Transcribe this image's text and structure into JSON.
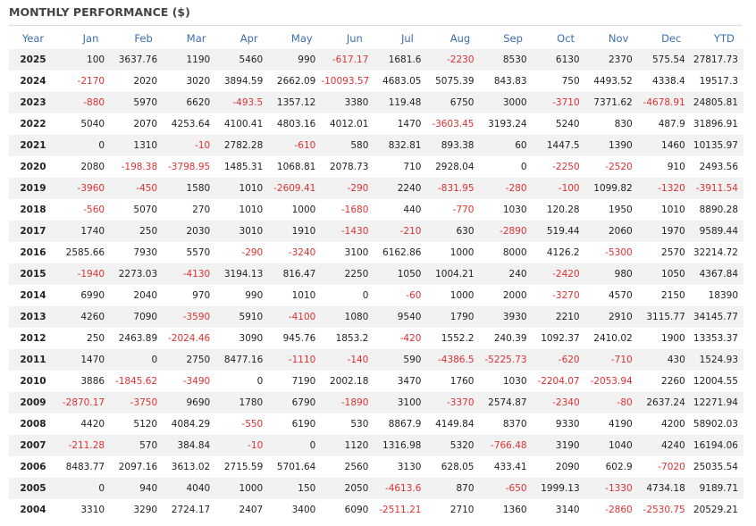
{
  "header": {
    "title": "MONTHLY PERFORMANCE ($)"
  },
  "table": {
    "columns": [
      "Year",
      "Jan",
      "Feb",
      "Mar",
      "Apr",
      "May",
      "Jun",
      "Jul",
      "Aug",
      "Sep",
      "Oct",
      "Nov",
      "Dec",
      "YTD"
    ],
    "rows": [
      [
        "2025",
        "100",
        "3637.76",
        "1190",
        "5460",
        "990",
        "-617.17",
        "1681.6",
        "-2230",
        "8530",
        "6130",
        "2370",
        "575.54",
        "27817.73"
      ],
      [
        "2024",
        "-2170",
        "2020",
        "3020",
        "3894.59",
        "2662.09",
        "-10093.57",
        "4683.05",
        "5075.39",
        "843.83",
        "750",
        "4493.52",
        "4338.4",
        "19517.3"
      ],
      [
        "2023",
        "-880",
        "5970",
        "6620",
        "-493.5",
        "1357.12",
        "3380",
        "119.48",
        "6750",
        "3000",
        "-3710",
        "7371.62",
        "-4678.91",
        "24805.81"
      ],
      [
        "2022",
        "5040",
        "2070",
        "4253.64",
        "4100.41",
        "4803.16",
        "4012.01",
        "1470",
        "-3603.45",
        "3193.24",
        "5240",
        "830",
        "487.9",
        "31896.91"
      ],
      [
        "2021",
        "0",
        "1310",
        "-10",
        "2782.28",
        "-610",
        "580",
        "832.81",
        "893.38",
        "60",
        "1447.5",
        "1390",
        "1460",
        "10135.97"
      ],
      [
        "2020",
        "2080",
        "-198.38",
        "-3798.95",
        "1485.31",
        "1068.81",
        "2078.73",
        "710",
        "2928.04",
        "0",
        "-2250",
        "-2520",
        "910",
        "2493.56"
      ],
      [
        "2019",
        "-3960",
        "-450",
        "1580",
        "1010",
        "-2609.41",
        "-290",
        "2240",
        "-831.95",
        "-280",
        "-100",
        "1099.82",
        "-1320",
        "-3911.54"
      ],
      [
        "2018",
        "-560",
        "5070",
        "270",
        "1010",
        "1000",
        "-1680",
        "440",
        "-770",
        "1030",
        "120.28",
        "1950",
        "1010",
        "8890.28"
      ],
      [
        "2017",
        "1740",
        "250",
        "2030",
        "3010",
        "1910",
        "-1430",
        "-210",
        "630",
        "-2890",
        "519.44",
        "2060",
        "1970",
        "9589.44"
      ],
      [
        "2016",
        "2585.66",
        "7930",
        "5570",
        "-290",
        "-3240",
        "3100",
        "6162.86",
        "1000",
        "8000",
        "4126.2",
        "-5300",
        "2570",
        "32214.72"
      ],
      [
        "2015",
        "-1940",
        "2273.03",
        "-4130",
        "3194.13",
        "816.47",
        "2250",
        "1050",
        "1004.21",
        "240",
        "-2420",
        "980",
        "1050",
        "4367.84"
      ],
      [
        "2014",
        "6990",
        "2040",
        "970",
        "990",
        "1010",
        "0",
        "-60",
        "1000",
        "2000",
        "-3270",
        "4570",
        "2150",
        "18390"
      ],
      [
        "2013",
        "4260",
        "7090",
        "-3590",
        "5910",
        "-4100",
        "1080",
        "9540",
        "1790",
        "3930",
        "2210",
        "2910",
        "3115.77",
        "34145.77"
      ],
      [
        "2012",
        "250",
        "2463.89",
        "-2024.46",
        "3090",
        "945.76",
        "1853.2",
        "-420",
        "1552.2",
        "240.39",
        "1092.37",
        "2410.02",
        "1900",
        "13353.37"
      ],
      [
        "2011",
        "1470",
        "0",
        "2750",
        "8477.16",
        "-1110",
        "-140",
        "590",
        "-4386.5",
        "-5225.73",
        "-620",
        "-710",
        "430",
        "1524.93"
      ],
      [
        "2010",
        "3886",
        "-1845.62",
        "-3490",
        "0",
        "7190",
        "2002.18",
        "3470",
        "1760",
        "1030",
        "-2204.07",
        "-2053.94",
        "2260",
        "12004.55"
      ],
      [
        "2009",
        "-2870.17",
        "-3750",
        "9690",
        "1780",
        "6790",
        "-1890",
        "3100",
        "-3370",
        "2574.87",
        "-2340",
        "-80",
        "2637.24",
        "12271.94"
      ],
      [
        "2008",
        "4420",
        "5120",
        "4084.29",
        "-550",
        "6190",
        "530",
        "8867.9",
        "4149.84",
        "8370",
        "9330",
        "4190",
        "4200",
        "58902.03"
      ],
      [
        "2007",
        "-211.28",
        "570",
        "384.84",
        "-10",
        "0",
        "1120",
        "1316.98",
        "5320",
        "-766.48",
        "3190",
        "1040",
        "4240",
        "16194.06"
      ],
      [
        "2006",
        "8483.77",
        "2097.16",
        "3613.02",
        "2715.59",
        "5701.64",
        "2560",
        "3130",
        "628.05",
        "433.41",
        "2090",
        "602.9",
        "-7020",
        "25035.54"
      ],
      [
        "2005",
        "0",
        "940",
        "4040",
        "1000",
        "150",
        "2050",
        "-4613.6",
        "870",
        "-650",
        "1999.13",
        "-1330",
        "4734.18",
        "9189.71"
      ],
      [
        "2004",
        "3310",
        "3290",
        "2724.17",
        "2407",
        "3400",
        "6090",
        "-2511.21",
        "2710",
        "1360",
        "3140",
        "-2860",
        "-2530.75",
        "20529.21"
      ]
    ]
  }
}
